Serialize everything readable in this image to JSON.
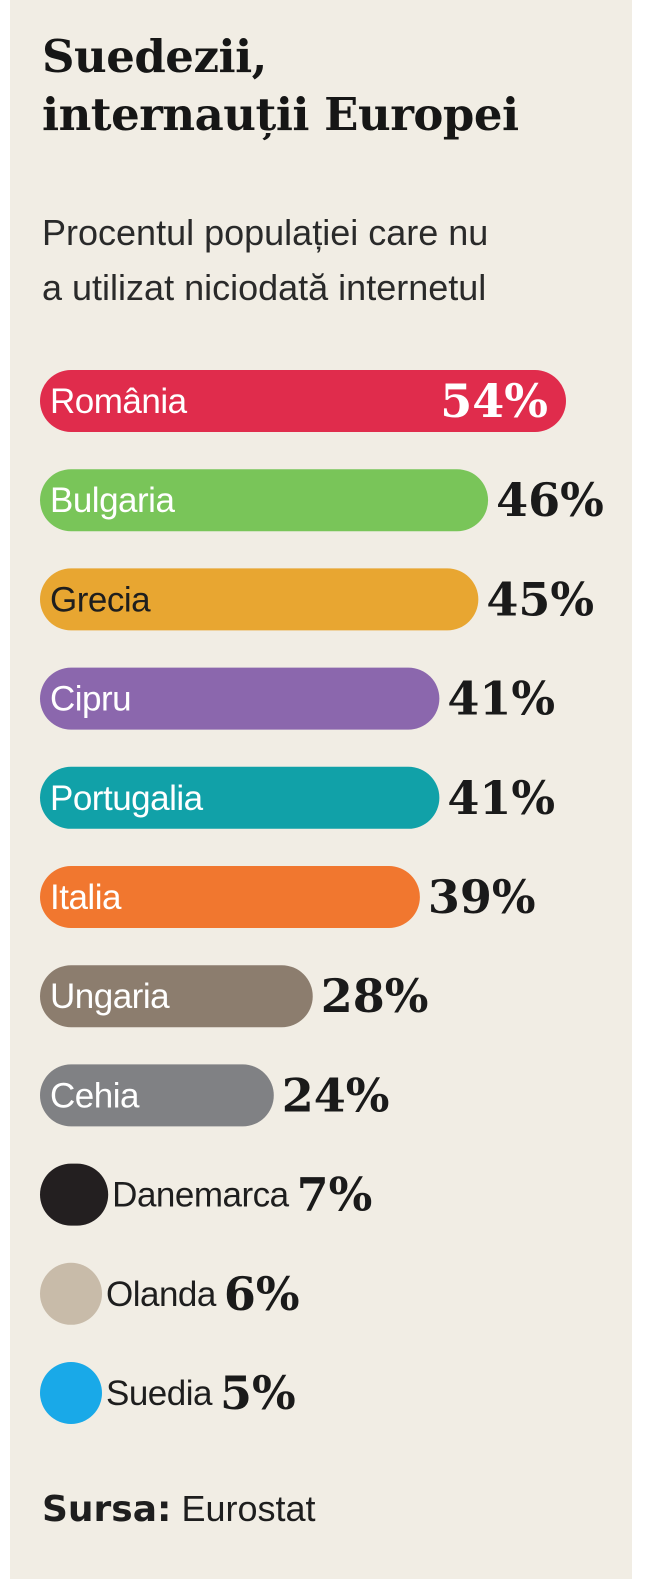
{
  "title": "Suedezii,\ninternauții Europei",
  "subtitle": "Procentul populației care nu\na utilizat niciodată internetul",
  "source": {
    "label": "Sursa:",
    "value": "Eurostat"
  },
  "chart_data": {
    "type": "bar",
    "orientation": "horizontal",
    "title": "Suedezii, internauții Europei",
    "subtitle": "Procentul populației care nu a utilizat niciodată internetul",
    "categories": [
      "România",
      "Bulgaria",
      "Grecia",
      "Cipru",
      "Portugalia",
      "Italia",
      "Ungaria",
      "Cehia",
      "Danemarca",
      "Olanda",
      "Suedia"
    ],
    "values": [
      54,
      46,
      45,
      41,
      41,
      39,
      28,
      24,
      7,
      6,
      5
    ],
    "value_labels": [
      "54%",
      "46%",
      "45%",
      "41%",
      "41%",
      "39%",
      "28%",
      "24%",
      "7%",
      "6%",
      "5%"
    ],
    "colors": [
      "#e02c4c",
      "#79c559",
      "#e8a631",
      "#8b67ad",
      "#11a1a8",
      "#f1772f",
      "#8c7d6e",
      "#808184",
      "#231f20",
      "#c8bba9",
      "#19a9e8"
    ],
    "label_colors": [
      "#ffffff",
      "#ffffff",
      "#1e1e1e",
      "#ffffff",
      "#ffffff",
      "#ffffff",
      "#ffffff",
      "#ffffff",
      "#1e1e1e",
      "#1e1e1e",
      "#1e1e1e"
    ],
    "label_inside": [
      true,
      true,
      true,
      true,
      true,
      true,
      true,
      true,
      false,
      false,
      false
    ],
    "value_inside": [
      true,
      false,
      false,
      false,
      false,
      false,
      false,
      false,
      false,
      false,
      false
    ],
    "unit": "%",
    "grid": false,
    "legend": "none"
  }
}
